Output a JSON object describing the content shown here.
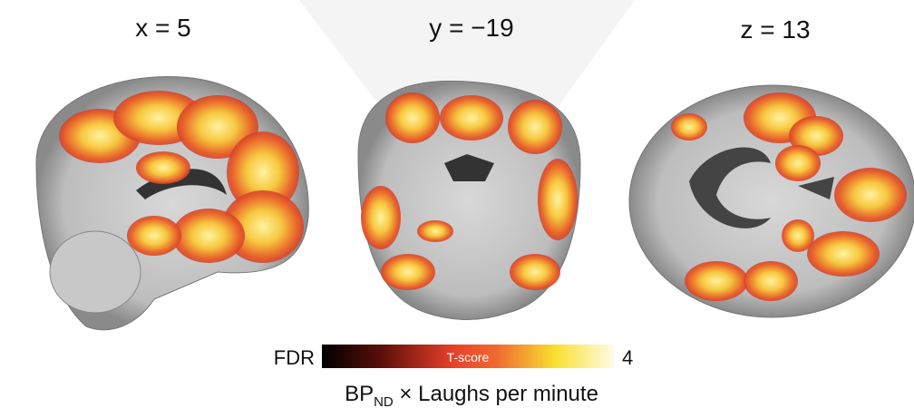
{
  "panels": [
    {
      "label": "x = 5"
    },
    {
      "label": "y = −19"
    },
    {
      "label": "z = 13"
    }
  ],
  "colorbar": {
    "min_label": "FDR",
    "label": "T-score",
    "max_label": "4"
  },
  "caption": {
    "main": "BP",
    "subscript": "ND",
    "rest": " × Laughs per minute"
  }
}
